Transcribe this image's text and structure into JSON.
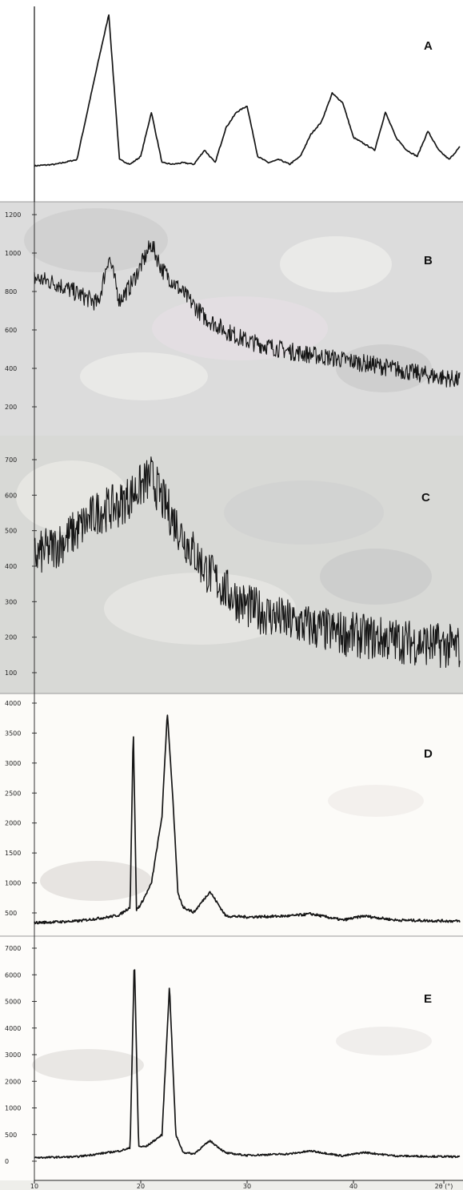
{
  "chart_data": [
    {
      "panel": "A",
      "type": "line",
      "x": [
        10,
        12,
        14,
        16,
        17,
        18,
        19,
        20,
        21,
        22,
        23,
        24,
        25,
        26,
        27,
        28,
        29,
        30,
        31,
        32,
        33,
        34,
        35,
        36,
        37,
        38,
        39,
        40,
        41,
        42,
        43,
        44,
        45,
        46,
        47,
        48,
        49,
        50
      ],
      "series": [
        {
          "values": [
            4,
            5,
            8,
            70,
            100,
            8,
            5,
            10,
            38,
            6,
            5,
            6,
            5,
            14,
            6,
            28,
            38,
            42,
            10,
            6,
            8,
            5,
            10,
            24,
            32,
            50,
            44,
            22,
            18,
            14,
            38,
            22,
            14,
            10,
            26,
            14,
            8,
            16
          ]
        }
      ],
      "peak_positions": [
        17,
        21,
        26,
        28.5,
        30,
        36,
        38,
        39,
        40.5,
        43,
        46,
        49
      ]
    },
    {
      "panel": "B",
      "type": "line",
      "ytick_labels": [
        "1200",
        "1000",
        "800",
        "600",
        "400",
        "200"
      ],
      "x": [
        10,
        12,
        14,
        16,
        17,
        18,
        19,
        20,
        21,
        22,
        23,
        24,
        26,
        28,
        30,
        34,
        38,
        42,
        46,
        50
      ],
      "series": [
        {
          "values": [
            850,
            820,
            760,
            700,
            980,
            720,
            800,
            920,
            1050,
            900,
            830,
            760,
            620,
            540,
            480,
            420,
            380,
            340,
            290,
            250
          ]
        }
      ]
    },
    {
      "panel": "C",
      "type": "line",
      "ytick_labels": [
        "700",
        "600",
        "500",
        "400",
        "300",
        "200",
        "100"
      ],
      "x": [
        10,
        12,
        14,
        16,
        18,
        20,
        21,
        22,
        24,
        26,
        28,
        30,
        34,
        38,
        42,
        46,
        50
      ],
      "series": [
        {
          "values": [
            400,
            430,
            480,
            540,
            560,
            620,
            650,
            580,
            460,
            360,
            290,
            240,
            190,
            160,
            140,
            125,
            110
          ]
        }
      ]
    },
    {
      "panel": "D",
      "type": "line",
      "ytick_labels": [
        "4000",
        "3500",
        "3000",
        "2500",
        "2000",
        "1500",
        "1000",
        "500"
      ],
      "x": [
        10,
        14,
        17,
        18,
        19,
        19.3,
        19.6,
        20,
        21,
        22,
        22.5,
        23,
        23.5,
        24,
        25,
        26.5,
        28,
        30,
        34,
        36,
        39,
        41,
        44,
        50
      ],
      "series": [
        {
          "values": [
            150,
            180,
            260,
            300,
            450,
            3900,
            400,
            500,
            900,
            2200,
            4200,
            2600,
            700,
            450,
            350,
            750,
            280,
            260,
            280,
            320,
            200,
            280,
            200,
            180
          ]
        }
      ]
    },
    {
      "panel": "E",
      "type": "line",
      "ytick_labels": [
        "7000",
        "6000",
        "5000",
        "4000",
        "3000",
        "2000",
        "1000",
        "500",
        "0"
      ],
      "xtick_labels": [
        "10",
        "20",
        "30",
        "40",
        "2θ (°)"
      ],
      "x": [
        10,
        14,
        17,
        18,
        19,
        19.4,
        19.8,
        20.5,
        22,
        22.7,
        23.3,
        24,
        25,
        26.5,
        28,
        30,
        34,
        36,
        39,
        41,
        44,
        50
      ],
      "series": [
        {
          "values": [
            120,
            150,
            300,
            350,
            450,
            7000,
            500,
            500,
            900,
            6000,
            900,
            300,
            250,
            700,
            280,
            200,
            250,
            350,
            180,
            300,
            180,
            150
          ]
        }
      ]
    }
  ],
  "labels": {
    "a": "A",
    "b": "B",
    "c": "C",
    "d": "D",
    "e": "E"
  },
  "colors": {
    "trace": "#151515",
    "panel_b_c_background": "#dcdcdc",
    "panel_d_e_background": "#fcfbf8"
  }
}
